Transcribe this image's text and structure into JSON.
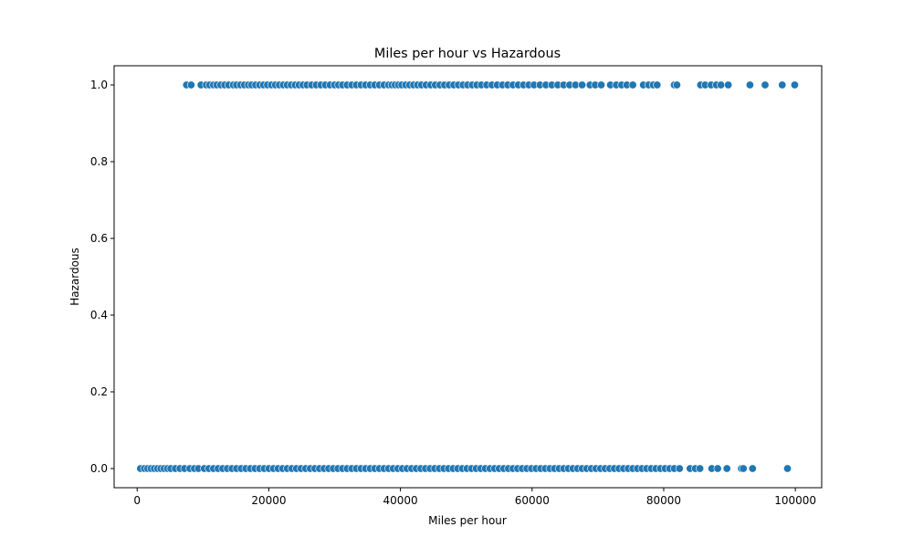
{
  "chart_data": {
    "type": "scatter",
    "title": "Miles per hour vs Hazardous",
    "xlabel": "Miles per hour",
    "ylabel": "Hazardous",
    "xlim": [
      -3500,
      104000
    ],
    "ylim": [
      -0.05,
      1.05
    ],
    "xticks": [
      0,
      20000,
      40000,
      60000,
      80000,
      100000
    ],
    "xtick_labels": [
      "0",
      "20000",
      "40000",
      "60000",
      "80000",
      "100000"
    ],
    "yticks": [
      0.0,
      0.2,
      0.4,
      0.6,
      0.8,
      1.0
    ],
    "ytick_labels": [
      "0.0",
      "0.2",
      "0.4",
      "0.6",
      "0.8",
      "1.0"
    ],
    "grid": false,
    "marker_color": "#1f77b4",
    "marker_edge_color": "#ffffff",
    "series": [
      {
        "points": [
          [
            7500,
            1
          ],
          [
            8200,
            1
          ],
          [
            9700,
            1
          ],
          [
            10500,
            1
          ],
          [
            11000,
            1
          ],
          [
            11600,
            1
          ],
          [
            12100,
            1
          ],
          [
            12700,
            1
          ],
          [
            13300,
            1
          ],
          [
            13900,
            1
          ],
          [
            14600,
            1
          ],
          [
            15100,
            1
          ],
          [
            15700,
            1
          ],
          [
            16300,
            1
          ],
          [
            16900,
            1
          ],
          [
            17400,
            1
          ],
          [
            18000,
            1
          ],
          [
            18600,
            1
          ],
          [
            19200,
            1
          ],
          [
            19800,
            1
          ],
          [
            20400,
            1
          ],
          [
            21000,
            1
          ],
          [
            21600,
            1
          ],
          [
            22200,
            1
          ],
          [
            22800,
            1
          ],
          [
            23400,
            1
          ],
          [
            24000,
            1
          ],
          [
            24600,
            1
          ],
          [
            25200,
            1
          ],
          [
            25800,
            1
          ],
          [
            26500,
            1
          ],
          [
            27200,
            1
          ],
          [
            27900,
            1
          ],
          [
            28600,
            1
          ],
          [
            29300,
            1
          ],
          [
            30000,
            1
          ],
          [
            30600,
            1
          ],
          [
            31200,
            1
          ],
          [
            31900,
            1
          ],
          [
            32600,
            1
          ],
          [
            33300,
            1
          ],
          [
            34000,
            1
          ],
          [
            34700,
            1
          ],
          [
            35400,
            1
          ],
          [
            36100,
            1
          ],
          [
            36800,
            1
          ],
          [
            37500,
            1
          ],
          [
            38200,
            1
          ],
          [
            38700,
            1
          ],
          [
            39200,
            1
          ],
          [
            39700,
            1
          ],
          [
            40200,
            1
          ],
          [
            40800,
            1
          ],
          [
            41400,
            1
          ],
          [
            42000,
            1
          ],
          [
            42600,
            1
          ],
          [
            43200,
            1
          ],
          [
            43900,
            1
          ],
          [
            44600,
            1
          ],
          [
            45300,
            1
          ],
          [
            46000,
            1
          ],
          [
            46700,
            1
          ],
          [
            47400,
            1
          ],
          [
            48100,
            1
          ],
          [
            48800,
            1
          ],
          [
            49500,
            1
          ],
          [
            50200,
            1
          ],
          [
            50900,
            1
          ],
          [
            51600,
            1
          ],
          [
            52300,
            1
          ],
          [
            53100,
            1
          ],
          [
            53900,
            1
          ],
          [
            54700,
            1
          ],
          [
            55500,
            1
          ],
          [
            56300,
            1
          ],
          [
            57100,
            1
          ],
          [
            57900,
            1
          ],
          [
            58700,
            1
          ],
          [
            59500,
            1
          ],
          [
            60300,
            1
          ],
          [
            61200,
            1
          ],
          [
            62100,
            1
          ],
          [
            63000,
            1
          ],
          [
            63900,
            1
          ],
          [
            64800,
            1
          ],
          [
            65700,
            1
          ],
          [
            66600,
            1
          ],
          [
            67600,
            1
          ],
          [
            68800,
            1
          ],
          [
            69600,
            1
          ],
          [
            70500,
            1
          ],
          [
            71900,
            1
          ],
          [
            72800,
            1
          ],
          [
            73600,
            1
          ],
          [
            74400,
            1
          ],
          [
            75300,
            1
          ],
          [
            76900,
            1
          ],
          [
            77700,
            1
          ],
          [
            78400,
            1
          ],
          [
            79000,
            1
          ],
          [
            81600,
            1
          ],
          [
            82000,
            1
          ],
          [
            85600,
            1
          ],
          [
            86300,
            1
          ],
          [
            87200,
            1
          ],
          [
            88000,
            1
          ],
          [
            88700,
            1
          ],
          [
            89800,
            1
          ],
          [
            93100,
            1
          ],
          [
            95400,
            1
          ],
          [
            98000,
            1
          ],
          [
            99900,
            1
          ],
          [
            500,
            0
          ],
          [
            1100,
            0
          ],
          [
            1600,
            0
          ],
          [
            2100,
            0
          ],
          [
            2600,
            0
          ],
          [
            3100,
            0
          ],
          [
            3600,
            0
          ],
          [
            4100,
            0
          ],
          [
            4600,
            0
          ],
          [
            5100,
            0
          ],
          [
            5800,
            0
          ],
          [
            6500,
            0
          ],
          [
            7200,
            0
          ],
          [
            8000,
            0
          ],
          [
            8700,
            0
          ],
          [
            9300,
            0
          ],
          [
            10200,
            0
          ],
          [
            10900,
            0
          ],
          [
            11600,
            0
          ],
          [
            12300,
            0
          ],
          [
            13000,
            0
          ],
          [
            13700,
            0
          ],
          [
            14400,
            0
          ],
          [
            15100,
            0
          ],
          [
            15800,
            0
          ],
          [
            16500,
            0
          ],
          [
            17200,
            0
          ],
          [
            17900,
            0
          ],
          [
            18600,
            0
          ],
          [
            19300,
            0
          ],
          [
            20000,
            0
          ],
          [
            20700,
            0
          ],
          [
            21400,
            0
          ],
          [
            22100,
            0
          ],
          [
            22800,
            0
          ],
          [
            23500,
            0
          ],
          [
            24200,
            0
          ],
          [
            24900,
            0
          ],
          [
            25600,
            0
          ],
          [
            26300,
            0
          ],
          [
            27000,
            0
          ],
          [
            27700,
            0
          ],
          [
            28400,
            0
          ],
          [
            29100,
            0
          ],
          [
            29800,
            0
          ],
          [
            30500,
            0
          ],
          [
            31200,
            0
          ],
          [
            31900,
            0
          ],
          [
            32600,
            0
          ],
          [
            33300,
            0
          ],
          [
            34000,
            0
          ],
          [
            34700,
            0
          ],
          [
            35400,
            0
          ],
          [
            36100,
            0
          ],
          [
            36800,
            0
          ],
          [
            37500,
            0
          ],
          [
            38200,
            0
          ],
          [
            38900,
            0
          ],
          [
            39600,
            0
          ],
          [
            40300,
            0
          ],
          [
            41000,
            0
          ],
          [
            41700,
            0
          ],
          [
            42400,
            0
          ],
          [
            43100,
            0
          ],
          [
            43800,
            0
          ],
          [
            44500,
            0
          ],
          [
            45200,
            0
          ],
          [
            45900,
            0
          ],
          [
            46600,
            0
          ],
          [
            47300,
            0
          ],
          [
            48000,
            0
          ],
          [
            48700,
            0
          ],
          [
            49400,
            0
          ],
          [
            50100,
            0
          ],
          [
            50800,
            0
          ],
          [
            51500,
            0
          ],
          [
            52200,
            0
          ],
          [
            52900,
            0
          ],
          [
            53600,
            0
          ],
          [
            54300,
            0
          ],
          [
            55000,
            0
          ],
          [
            55700,
            0
          ],
          [
            56400,
            0
          ],
          [
            57100,
            0
          ],
          [
            57800,
            0
          ],
          [
            58500,
            0
          ],
          [
            59200,
            0
          ],
          [
            59900,
            0
          ],
          [
            60600,
            0
          ],
          [
            61300,
            0
          ],
          [
            62000,
            0
          ],
          [
            62700,
            0
          ],
          [
            63400,
            0
          ],
          [
            64100,
            0
          ],
          [
            64800,
            0
          ],
          [
            65500,
            0
          ],
          [
            66200,
            0
          ],
          [
            66900,
            0
          ],
          [
            67600,
            0
          ],
          [
            68300,
            0
          ],
          [
            69000,
            0
          ],
          [
            69700,
            0
          ],
          [
            70400,
            0
          ],
          [
            71100,
            0
          ],
          [
            71800,
            0
          ],
          [
            72500,
            0
          ],
          [
            73200,
            0
          ],
          [
            73900,
            0
          ],
          [
            74600,
            0
          ],
          [
            75300,
            0
          ],
          [
            76000,
            0
          ],
          [
            76700,
            0
          ],
          [
            77400,
            0
          ],
          [
            78100,
            0
          ],
          [
            78800,
            0
          ],
          [
            79500,
            0
          ],
          [
            80200,
            0
          ],
          [
            80900,
            0
          ],
          [
            81600,
            0
          ],
          [
            82400,
            0
          ],
          [
            84000,
            0
          ],
          [
            84800,
            0
          ],
          [
            85500,
            0
          ],
          [
            87300,
            0
          ],
          [
            88200,
            0
          ],
          [
            89600,
            0
          ],
          [
            91800,
            0
          ],
          [
            92100,
            0
          ],
          [
            93500,
            0
          ],
          [
            98800,
            0
          ]
        ]
      }
    ]
  }
}
